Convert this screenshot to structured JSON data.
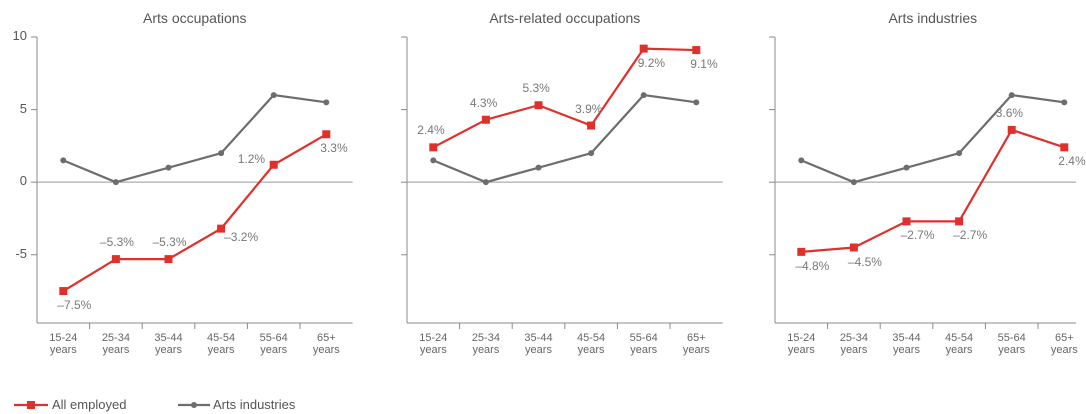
{
  "chart_data": [
    {
      "type": "line",
      "title": "Arts occupations",
      "categories": [
        "15-24 years",
        "25-34 years",
        "35-44 years",
        "45-54 years",
        "55-64 years",
        "65+ years"
      ],
      "series": [
        {
          "name": "All employed",
          "color": "#e0302b",
          "values": [
            -7.5,
            -5.3,
            -5.3,
            -3.2,
            1.2,
            3.3
          ],
          "value_labels": [
            "–7.5%",
            "–5.3%",
            "–5.3%",
            "–3.2%",
            "1.2%",
            "3.3%"
          ]
        },
        {
          "name": "Arts industries",
          "color": "#6d6d6d",
          "values": [
            1.5,
            0,
            1,
            2,
            6,
            5.5
          ]
        }
      ],
      "ylim": [
        -9.7,
        10
      ],
      "yticks": [
        -5,
        0,
        5,
        10
      ]
    },
    {
      "type": "line",
      "title": "Arts-related occupations",
      "categories": [
        "15-24 years",
        "25-34 years",
        "35-44 years",
        "45-54 years",
        "55-64 years",
        "65+ years"
      ],
      "series": [
        {
          "name": "All employed",
          "color": "#e0302b",
          "values": [
            2.4,
            4.3,
            5.3,
            3.9,
            9.2,
            9.1
          ],
          "value_labels": [
            "2.4%",
            "4.3%",
            "5.3%",
            "3.9%",
            "9.2%",
            "9.1%"
          ]
        },
        {
          "name": "Arts industries",
          "color": "#6d6d6d",
          "values": [
            1.5,
            0,
            1,
            2,
            6,
            5.5
          ]
        }
      ],
      "ylim": [
        -9.7,
        10
      ],
      "yticks": [
        -5,
        0,
        5,
        10
      ]
    },
    {
      "type": "line",
      "title": "Arts industries",
      "categories": [
        "15-24 years",
        "25-34 years",
        "35-44 years",
        "45-54 years",
        "55-64 years",
        "65+ years"
      ],
      "series": [
        {
          "name": "All employed",
          "color": "#e0302b",
          "values": [
            -4.8,
            -4.5,
            -2.7,
            -2.7,
            3.6,
            2.4
          ],
          "value_labels": [
            "–4.8%",
            "–4.5%",
            "–2.7%",
            "–2.7%",
            "3.6%",
            "2.4%"
          ]
        },
        {
          "name": "Arts industries",
          "color": "#6d6d6d",
          "values": [
            1.5,
            0,
            1,
            2,
            6,
            5.5
          ]
        }
      ],
      "ylim": [
        -9.7,
        10
      ],
      "yticks": [
        -5,
        0,
        5,
        10
      ]
    }
  ]
}
